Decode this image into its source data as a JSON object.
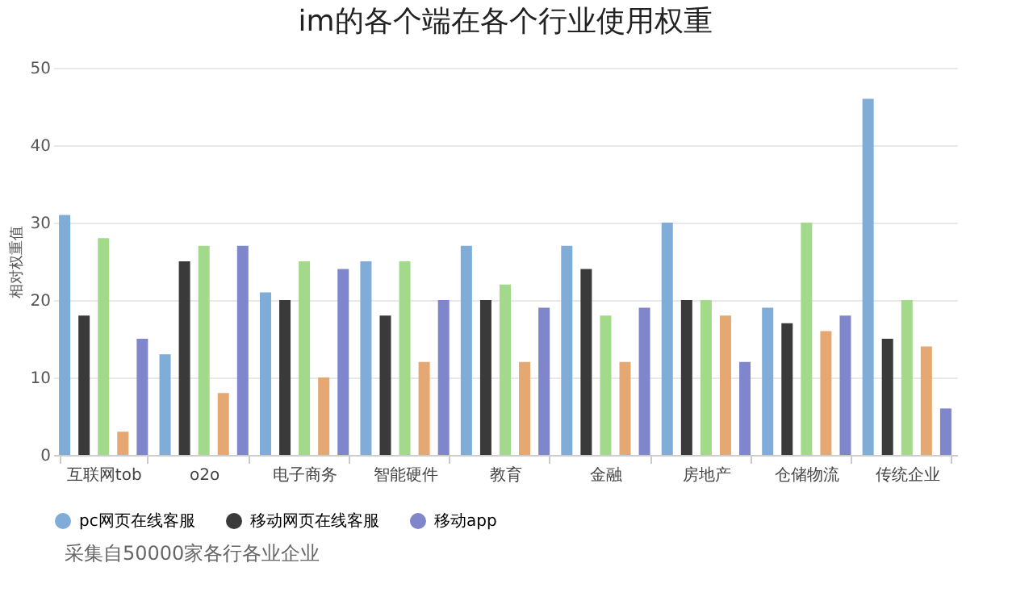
{
  "chart_data": {
    "type": "bar",
    "title": "im的各个端在各个行业使用权重",
    "ylabel": "相对权重值",
    "categories": [
      "互联网tob",
      "o2o",
      "电子商务",
      "智能硬件",
      "教育",
      "金融",
      "房地产",
      "仓储物流",
      "传统企业"
    ],
    "series": [
      {
        "name": "pc网页在线客服",
        "color": "#7fadd8",
        "values": [
          31,
          13,
          21,
          25,
          27,
          27,
          30,
          19,
          46
        ]
      },
      {
        "name": "移动网页在线客服",
        "color": "#3a3a3a",
        "values": [
          18,
          25,
          20,
          18,
          20,
          24,
          20,
          17,
          15
        ]
      },
      {
        "color": "#a3d98a",
        "values": [
          28,
          27,
          25,
          25,
          22,
          18,
          20,
          30,
          20
        ]
      },
      {
        "color": "#e5a872",
        "values": [
          3,
          8,
          10,
          12,
          12,
          12,
          18,
          16,
          14
        ]
      },
      {
        "name": "移动app",
        "color": "#7f86cc",
        "values": [
          15,
          27,
          24,
          20,
          19,
          19,
          12,
          18,
          6
        ]
      }
    ],
    "ylim": [
      0,
      50
    ],
    "yticks": [
      0,
      10,
      20,
      30,
      40,
      50
    ],
    "grid": "y",
    "legend": "bottom",
    "annotations": [
      "采集自50000家各行各业企业"
    ]
  }
}
